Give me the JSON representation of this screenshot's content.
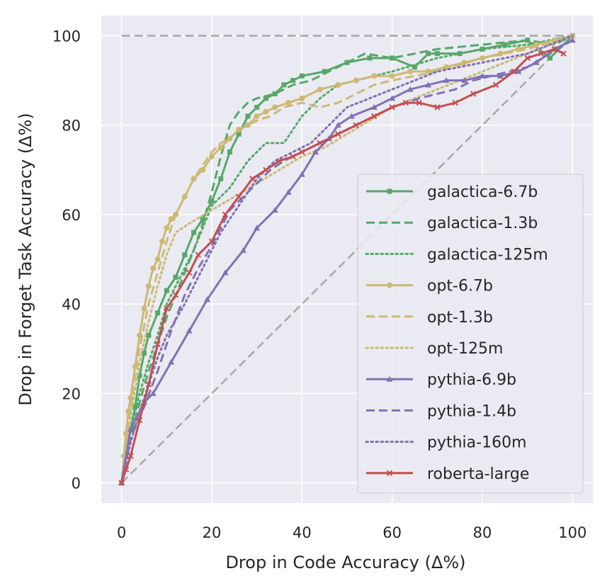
{
  "chart_data": {
    "type": "line",
    "xlabel": "Drop in Code Accuracy (Δ%)",
    "ylabel": "Drop in Forget Task Accuracy (Δ%)",
    "xlim": [
      -4.5,
      104.5
    ],
    "ylim": [
      -4.5,
      104.5
    ],
    "x_ticks": [
      0,
      20,
      40,
      60,
      80,
      100
    ],
    "y_ticks": [
      0,
      20,
      40,
      60,
      80,
      100
    ],
    "grid": true,
    "legend_position": "lower-right",
    "reference_lines": [
      {
        "style": "dashed",
        "color": "#aaaaaa",
        "x": [
          0,
          100
        ],
        "y": [
          100,
          100
        ]
      },
      {
        "style": "dashed",
        "color": "#aaaaaa",
        "x": [
          0,
          100
        ],
        "y": [
          0,
          100
        ]
      }
    ],
    "series": [
      {
        "name": "galactica-6.7b",
        "color": "#55a868",
        "dash": "solid",
        "marker": "square",
        "x": [
          0,
          1,
          2,
          3,
          4,
          5,
          6,
          8,
          10,
          12,
          14,
          16,
          18,
          20,
          22,
          24,
          26,
          28,
          30,
          32,
          34,
          36,
          38,
          40,
          45,
          50,
          55,
          60,
          65,
          68,
          70,
          75,
          80,
          85,
          90,
          95,
          100
        ],
        "y": [
          0,
          7,
          12,
          17,
          24,
          29,
          33,
          38,
          43,
          46,
          51,
          56,
          59,
          63,
          68,
          74,
          78,
          82,
          84,
          86,
          87,
          89,
          90,
          91,
          92,
          94,
          95,
          95,
          93,
          96,
          96,
          96,
          97,
          98,
          99,
          95,
          100
        ]
      },
      {
        "name": "galactica-1.3b",
        "color": "#55a868",
        "dash": "dashed",
        "marker": "none",
        "x": [
          0,
          2,
          4,
          6,
          8,
          10,
          12,
          14,
          16,
          18,
          20,
          22,
          24,
          26,
          28,
          30,
          34,
          38,
          42,
          46,
          50,
          54,
          60,
          70,
          80,
          90,
          96,
          100
        ],
        "y": [
          0,
          10,
          18,
          25,
          31,
          37,
          42,
          47,
          52,
          58,
          65,
          73,
          80,
          83,
          85,
          86,
          87,
          89,
          90,
          92,
          94,
          96,
          95,
          97,
          98,
          99,
          98,
          100
        ]
      },
      {
        "name": "galactica-125m",
        "color": "#55a868",
        "dash": "dotted",
        "marker": "none",
        "x": [
          0,
          2,
          4,
          6,
          8,
          10,
          12,
          14,
          16,
          18,
          20,
          24,
          28,
          32,
          36,
          40,
          44,
          48,
          52,
          60,
          70,
          80,
          90,
          100
        ],
        "y": [
          0,
          12,
          20,
          27,
          33,
          40,
          44,
          48,
          52,
          57,
          62,
          66,
          72,
          76,
          76,
          82,
          86,
          89,
          90,
          92,
          95,
          97,
          98,
          100
        ]
      },
      {
        "name": "opt-6.7b",
        "color": "#ccb974",
        "dash": "solid",
        "marker": "circle",
        "x": [
          0,
          0.5,
          1,
          1.5,
          2,
          3,
          4,
          5,
          6,
          7,
          8,
          9,
          10,
          11,
          12,
          14,
          16,
          18,
          20,
          22,
          24,
          26,
          28,
          30,
          32,
          34,
          37,
          40,
          44,
          48,
          52,
          56,
          60,
          64,
          68,
          72,
          76,
          80,
          84,
          88,
          92,
          96,
          100
        ],
        "y": [
          0,
          6,
          11,
          16,
          19,
          26,
          33,
          39,
          44,
          48,
          50,
          54,
          57,
          59,
          60,
          64,
          68,
          70,
          73,
          75,
          77,
          79,
          80,
          82,
          83,
          84,
          85,
          86,
          88,
          89,
          90,
          91,
          91,
          92,
          92,
          93,
          94,
          95,
          96,
          97,
          98,
          99,
          100
        ]
      },
      {
        "name": "opt-1.3b",
        "color": "#ccb974",
        "dash": "dashed",
        "marker": "none",
        "x": [
          0,
          1,
          2,
          3,
          4,
          6,
          8,
          10,
          12,
          14,
          16,
          18,
          20,
          22,
          24,
          26,
          28,
          30,
          33,
          36,
          40,
          44,
          48,
          52,
          56,
          60,
          70,
          80,
          90,
          100
        ],
        "y": [
          0,
          9,
          17,
          24,
          30,
          40,
          47,
          54,
          60,
          64,
          68,
          71,
          74,
          76,
          77,
          79,
          80,
          81,
          82,
          84,
          85,
          84,
          85,
          87,
          89,
          90,
          92,
          95,
          97,
          100
        ]
      },
      {
        "name": "opt-125m",
        "color": "#ccb974",
        "dash": "dotted",
        "marker": "none",
        "x": [
          0,
          1,
          2,
          4,
          6,
          8,
          10,
          12,
          15,
          20,
          25,
          30,
          35,
          40,
          45,
          50,
          55,
          60,
          70,
          80,
          90,
          100
        ],
        "y": [
          0,
          8,
          15,
          27,
          36,
          44,
          51,
          56,
          58,
          61,
          64,
          67,
          70,
          73,
          75,
          78,
          81,
          84,
          88,
          92,
          96,
          100
        ]
      },
      {
        "name": "pythia-6.9b",
        "color": "#8172b2",
        "dash": "solid",
        "marker": "triangle",
        "x": [
          0,
          2,
          5,
          7,
          11,
          15,
          19,
          23,
          27,
          30,
          34,
          37,
          40,
          43,
          46,
          48,
          51,
          56,
          60,
          64,
          68,
          72,
          76,
          80,
          84,
          88,
          92,
          96,
          100
        ],
        "y": [
          0,
          12,
          18,
          20,
          27,
          34,
          41,
          47,
          52,
          57,
          61,
          65,
          69,
          74,
          77,
          80,
          82,
          84,
          86,
          88,
          89,
          90,
          90,
          91,
          91,
          92,
          94,
          97,
          99
        ]
      },
      {
        "name": "pythia-1.4b",
        "color": "#8172b2",
        "dash": "dashed",
        "marker": "none",
        "x": [
          0,
          2,
          5,
          8,
          11,
          14,
          17,
          20,
          22,
          24,
          26,
          28,
          30,
          33,
          36,
          40,
          44,
          48,
          52,
          56,
          60,
          66,
          70,
          74,
          78,
          82,
          86,
          90,
          95,
          100
        ],
        "y": [
          0,
          10,
          17,
          25,
          34,
          42,
          48,
          53,
          57,
          61,
          63,
          65,
          67,
          70,
          72,
          74,
          76,
          78,
          80,
          82,
          84,
          86,
          87,
          88,
          90,
          91,
          92,
          93,
          96,
          99
        ]
      },
      {
        "name": "pythia-160m",
        "color": "#8172b2",
        "dash": "dotted",
        "marker": "none",
        "x": [
          0,
          2,
          4,
          6,
          8,
          10,
          14,
          18,
          22,
          26,
          30,
          34,
          38,
          42,
          46,
          50,
          55,
          60,
          65,
          70,
          75,
          80,
          85,
          90,
          95,
          100
        ],
        "y": [
          0,
          9,
          16,
          22,
          28,
          33,
          40,
          48,
          56,
          62,
          68,
          72,
          74,
          76,
          80,
          84,
          86,
          88,
          90,
          92,
          93,
          94,
          95,
          96,
          98,
          100
        ]
      },
      {
        "name": "roberta-large",
        "color": "#c44e52",
        "dash": "solid",
        "marker": "x",
        "x": [
          0,
          1,
          2,
          4,
          6,
          8,
          10,
          12,
          15,
          17,
          20,
          23,
          26,
          29,
          32,
          35,
          38,
          40,
          44,
          48,
          52,
          56,
          60,
          63,
          66,
          70,
          74,
          78,
          83,
          87,
          90,
          93,
          96,
          98
        ],
        "y": [
          0,
          3,
          6,
          14,
          22,
          31,
          39,
          42,
          47,
          51,
          54,
          60,
          64,
          68,
          70,
          72,
          73,
          74,
          76,
          78,
          80,
          82,
          84,
          85,
          85,
          84,
          85,
          87,
          89,
          92,
          95,
          96,
          97,
          96
        ]
      }
    ]
  }
}
